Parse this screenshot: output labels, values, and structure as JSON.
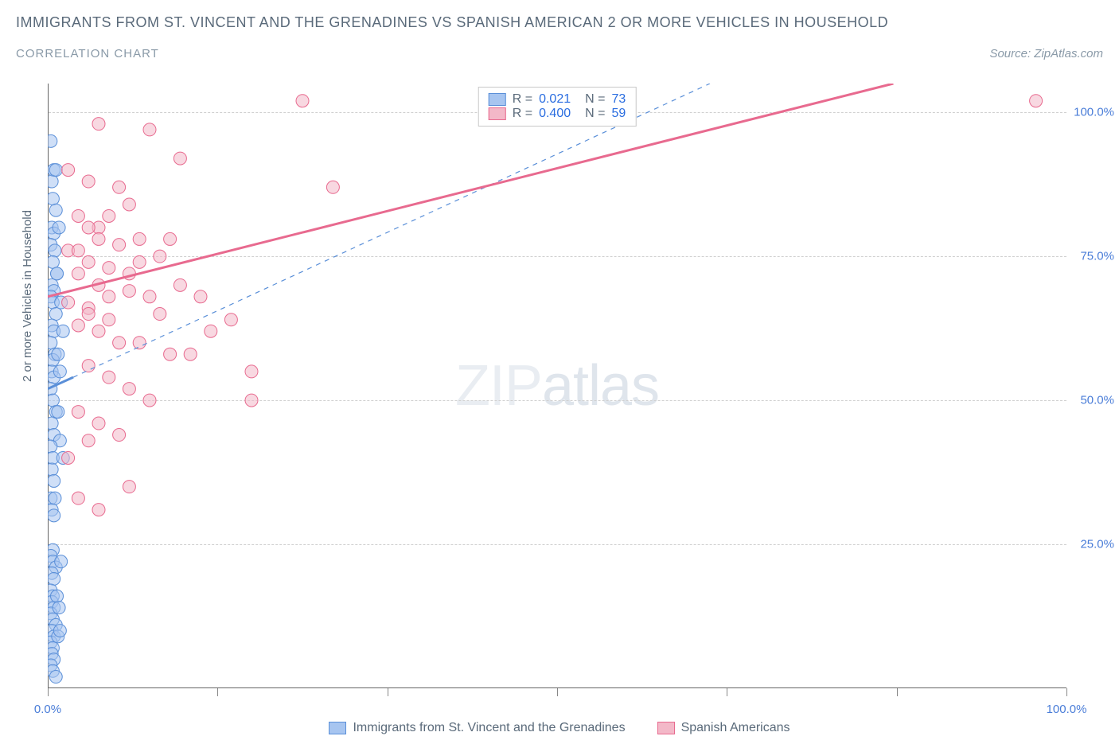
{
  "title": "IMMIGRANTS FROM ST. VINCENT AND THE GRENADINES VS SPANISH AMERICAN 2 OR MORE VEHICLES IN HOUSEHOLD",
  "subtitle": "CORRELATION CHART",
  "source": "Source: ZipAtlas.com",
  "y_axis_label": "2 or more Vehicles in Household",
  "watermark_bold": "ZIP",
  "watermark_thin": "atlas",
  "chart": {
    "type": "scatter-correlation",
    "background_color": "#ffffff",
    "grid_color": "#d0d0d0",
    "axis_color": "#666666",
    "text_color": "#5a6a7a",
    "tick_label_color": "#4a7dd8",
    "xlim": [
      0,
      100
    ],
    "ylim": [
      0,
      105
    ],
    "y_ticks": [
      25,
      50,
      75,
      100
    ],
    "y_tick_labels": [
      "25.0%",
      "50.0%",
      "75.0%",
      "100.0%"
    ],
    "x_ticks": [
      0,
      16.67,
      33.33,
      50,
      66.67,
      83.33,
      100
    ],
    "x_tick_labels_shown": {
      "0": "0.0%",
      "100": "100.0%"
    },
    "marker_radius": 8,
    "marker_opacity": 0.55,
    "line_width_solid": 3,
    "line_width_dashed": 1.2
  },
  "series": [
    {
      "name": "Immigrants from St. Vincent and the Grenadines",
      "color_fill": "#a7c5f0",
      "color_stroke": "#5a8fd8",
      "r_label": "R =",
      "r_value": "0.021",
      "n_label": "N =",
      "n_value": "73",
      "trend": {
        "style": "solid-then-dashed",
        "x1": 0,
        "y1": 52,
        "x_solid_end": 2.5,
        "y_solid_end": 54,
        "x2": 65,
        "y2": 105
      },
      "points": [
        [
          0.3,
          95
        ],
        [
          0.6,
          90
        ],
        [
          0.4,
          88
        ],
        [
          0.5,
          85
        ],
        [
          0.8,
          83
        ],
        [
          0.4,
          80
        ],
        [
          0.6,
          79
        ],
        [
          0.3,
          77
        ],
        [
          0.7,
          76
        ],
        [
          0.5,
          74
        ],
        [
          0.9,
          72
        ],
        [
          0.4,
          70
        ],
        [
          0.6,
          69
        ],
        [
          0.3,
          68
        ],
        [
          0.5,
          67
        ],
        [
          0.8,
          65
        ],
        [
          0.4,
          63
        ],
        [
          0.6,
          62
        ],
        [
          0.3,
          60
        ],
        [
          0.7,
          58
        ],
        [
          0.5,
          57
        ],
        [
          0.4,
          55
        ],
        [
          0.6,
          54
        ],
        [
          0.3,
          52
        ],
        [
          0.5,
          50
        ],
        [
          0.8,
          48
        ],
        [
          0.4,
          46
        ],
        [
          0.6,
          44
        ],
        [
          1.2,
          43
        ],
        [
          0.3,
          42
        ],
        [
          0.5,
          40
        ],
        [
          1.5,
          40
        ],
        [
          0.4,
          38
        ],
        [
          0.6,
          36
        ],
        [
          0.3,
          33
        ],
        [
          0.4,
          31
        ],
        [
          0.6,
          30
        ],
        [
          0.5,
          24
        ],
        [
          0.3,
          23
        ],
        [
          0.5,
          22
        ],
        [
          0.8,
          21
        ],
        [
          0.4,
          20
        ],
        [
          0.6,
          19
        ],
        [
          0.3,
          17
        ],
        [
          0.5,
          16
        ],
        [
          0.4,
          15
        ],
        [
          0.6,
          14
        ],
        [
          0.3,
          13
        ],
        [
          0.5,
          12
        ],
        [
          0.8,
          11
        ],
        [
          0.4,
          10
        ],
        [
          0.6,
          9
        ],
        [
          0.3,
          8
        ],
        [
          0.5,
          7
        ],
        [
          0.4,
          6
        ],
        [
          0.6,
          5
        ],
        [
          0.3,
          4
        ],
        [
          0.5,
          3
        ],
        [
          0.8,
          2
        ],
        [
          1.0,
          9
        ],
        [
          1.2,
          10
        ],
        [
          0.9,
          16
        ],
        [
          1.1,
          14
        ],
        [
          1.3,
          22
        ],
        [
          0.7,
          33
        ],
        [
          1.0,
          58
        ],
        [
          1.3,
          67
        ],
        [
          0.9,
          72
        ],
        [
          1.1,
          80
        ],
        [
          0.8,
          90
        ],
        [
          1.5,
          62
        ],
        [
          1.2,
          55
        ],
        [
          1.0,
          48
        ]
      ]
    },
    {
      "name": "Spanish Americans",
      "color_fill": "#f3b8c8",
      "color_stroke": "#e86a8f",
      "r_label": "R =",
      "r_value": "0.400",
      "n_label": "N =",
      "n_value": "59",
      "trend": {
        "style": "solid",
        "x1": 0,
        "y1": 68,
        "x2": 83,
        "y2": 105
      },
      "points": [
        [
          25,
          102
        ],
        [
          97,
          102
        ],
        [
          5,
          98
        ],
        [
          10,
          97
        ],
        [
          13,
          92
        ],
        [
          2,
          90
        ],
        [
          4,
          88
        ],
        [
          7,
          87
        ],
        [
          28,
          87
        ],
        [
          3,
          82
        ],
        [
          5,
          80
        ],
        [
          9,
          78
        ],
        [
          12,
          78
        ],
        [
          2,
          76
        ],
        [
          4,
          74
        ],
        [
          6,
          73
        ],
        [
          3,
          72
        ],
        [
          5,
          70
        ],
        [
          8,
          69
        ],
        [
          10,
          68
        ],
        [
          15,
          68
        ],
        [
          2,
          67
        ],
        [
          4,
          66
        ],
        [
          6,
          64
        ],
        [
          11,
          65
        ],
        [
          3,
          63
        ],
        [
          5,
          62
        ],
        [
          7,
          60
        ],
        [
          9,
          60
        ],
        [
          12,
          58
        ],
        [
          4,
          56
        ],
        [
          18,
          64
        ],
        [
          6,
          54
        ],
        [
          20,
          55
        ],
        [
          8,
          52
        ],
        [
          10,
          50
        ],
        [
          3,
          48
        ],
        [
          5,
          46
        ],
        [
          20,
          50
        ],
        [
          7,
          44
        ],
        [
          4,
          43
        ],
        [
          14,
          58
        ],
        [
          16,
          62
        ],
        [
          2,
          40
        ],
        [
          8,
          35
        ],
        [
          3,
          33
        ],
        [
          5,
          31
        ],
        [
          4,
          65
        ],
        [
          6,
          68
        ],
        [
          8,
          72
        ],
        [
          11,
          75
        ],
        [
          13,
          70
        ],
        [
          7,
          77
        ],
        [
          9,
          74
        ],
        [
          4,
          80
        ],
        [
          6,
          82
        ],
        [
          8,
          84
        ],
        [
          3,
          76
        ],
        [
          5,
          78
        ]
      ]
    }
  ],
  "legend_bottom": [
    {
      "swatch_fill": "#a7c5f0",
      "swatch_stroke": "#5a8fd8",
      "label": "Immigrants from St. Vincent and the Grenadines"
    },
    {
      "swatch_fill": "#f3b8c8",
      "swatch_stroke": "#e86a8f",
      "label": "Spanish Americans"
    }
  ]
}
